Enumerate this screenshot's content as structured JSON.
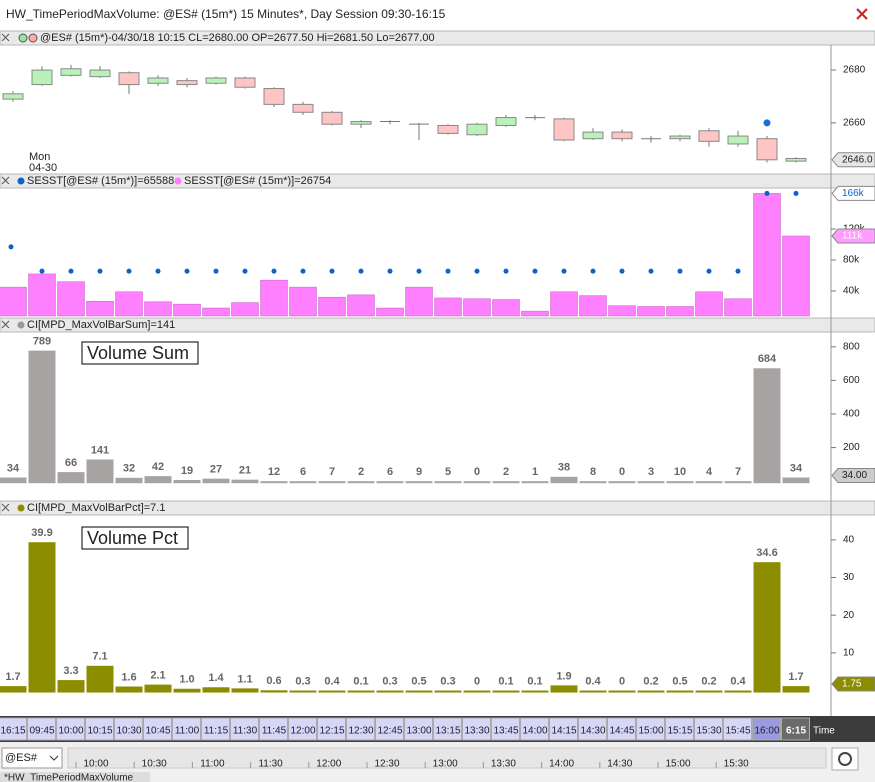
{
  "window": {
    "title": "HW_TimePeriodMaxVolume: @ES# (15m*) 15 Minutes*, Day Session 09:30-16:15",
    "tab": "*HW_TimePeriodMaxVolume",
    "symbol": "@ES#"
  },
  "price_panel": {
    "header": "@ES# (15m*)-04/30/18 10:15 CL=2680.00 OP=2677.50 Hi=2681.50 Lo=2677.00",
    "date_label": [
      "Mon",
      "04-30"
    ],
    "ylim": [
      2641,
      2689.5
    ],
    "yticks": [
      2680,
      2660
    ],
    "last": {
      "value": 2646,
      "label": "2646.0"
    },
    "open": [
      2669,
      2674.5,
      2678,
      2677.5,
      2679,
      2675,
      2676,
      2675,
      2677,
      2673,
      2667,
      2664,
      2659.5,
      2660.5,
      2659.5,
      2659,
      2655.5,
      2659,
      2662,
      2661.5,
      2654,
      2656.5,
      2654,
      2654,
      2657,
      2652,
      2654,
      2645.5
    ],
    "close": [
      2671,
      2680,
      2680.5,
      2680,
      2674.5,
      2677,
      2674.5,
      2677,
      2673.5,
      2667,
      2664,
      2659.5,
      2660.5,
      2660.5,
      2659.5,
      2656,
      2659.5,
      2662,
      2662,
      2653.5,
      2656.5,
      2654,
      2654,
      2655,
      2653,
      2655,
      2646,
      2646.5
    ],
    "high": [
      2672,
      2681.5,
      2682,
      2681.5,
      2679.5,
      2678,
      2677,
      2677.5,
      2677.5,
      2673.5,
      2668,
      2664.5,
      2661,
      2661,
      2660,
      2659.5,
      2660,
      2663,
      2663,
      2662,
      2658,
      2657.5,
      2655,
      2655.5,
      2658,
      2657,
      2655,
      2647
    ],
    "low": [
      2668,
      2674,
      2677.5,
      2677,
      2671,
      2674,
      2673.5,
      2674.5,
      2673,
      2666,
      2663,
      2659,
      2658,
      2659.5,
      2653.5,
      2655.5,
      2655,
      2658.5,
      2661,
      2653,
      2653.5,
      2653,
      2652.5,
      2653,
      2651,
      2651,
      2645,
      2645
    ],
    "up_color": "#b9f2b9",
    "down_color": "#ffc4c4",
    "markers": [
      null,
      null,
      null,
      null,
      null,
      null,
      null,
      null,
      null,
      null,
      null,
      null,
      null,
      null,
      null,
      null,
      null,
      null,
      null,
      null,
      null,
      null,
      null,
      null,
      null,
      null,
      2660,
      null
    ],
    "marker_color": "#1a6fd0"
  },
  "volume_panel": {
    "legend": [
      "SESST[@ES# (15m*)]=65588",
      "SESST[@ES# (15m*)]=26754"
    ],
    "ylim": [
      7700,
      173000
    ],
    "yticks": [
      {
        "value": 40000,
        "label": "40k"
      },
      {
        "value": 80000,
        "label": "80k"
      },
      {
        "value": 120000,
        "label": "120k"
      }
    ],
    "series": [
      {
        "color": "#0a64c8",
        "values": [
          97000,
          65588,
          65588,
          65588,
          65588,
          65588,
          65588,
          65588,
          65588,
          65588,
          65588,
          65588,
          65588,
          65588,
          65588,
          65588,
          65588,
          65588,
          65588,
          65588,
          65588,
          65588,
          65588,
          65588,
          65588,
          65588,
          166000,
          166000
        ],
        "last": {
          "value": 166000,
          "label": "166k"
        }
      },
      {
        "color": "#ff80ff",
        "values": [
          45000,
          62000,
          52000,
          26754,
          39000,
          26000,
          23000,
          18000,
          25000,
          54000,
          45000,
          32000,
          35000,
          18000,
          45000,
          31000,
          30000,
          29000,
          14000,
          39000,
          34000,
          21000,
          20000,
          20000,
          39000,
          30000,
          166000,
          111000
        ],
        "last": {
          "value": 111000,
          "label": "111k"
        }
      }
    ]
  },
  "sum_panel": {
    "legend": "CI[MPD_MaxVolBarSum]=141",
    "annotation": "Volume Sum",
    "color": "#a7a3a3",
    "ylim": [
      -100,
      888
    ],
    "yticks": [
      200,
      400,
      600,
      800
    ],
    "last": {
      "value": 34,
      "label": "34.00"
    },
    "values": [
      34,
      789,
      66,
      141,
      32,
      42,
      19,
      27,
      21,
      12,
      6,
      7,
      2,
      6,
      9,
      5,
      0,
      2,
      1,
      38,
      8,
      0,
      3,
      10,
      4,
      7,
      684,
      34
    ]
  },
  "pct_panel": {
    "legend": "CI[MPD_MaxVolBarPct]=7.1",
    "annotation": "Volume Pct",
    "color": "#8c8c00",
    "ylim": [
      -5.7,
      46.6
    ],
    "yticks": [
      10,
      20,
      30,
      40
    ],
    "last": {
      "value": 1.75,
      "label": "1.75"
    },
    "values": [
      1.7,
      39.9,
      3.3,
      7.1,
      1.6,
      2.1,
      1,
      1.4,
      1.1,
      0.6,
      0.3,
      0.4,
      0.1,
      0.3,
      0.5,
      0.3,
      0,
      0.1,
      0.1,
      1.9,
      0.4,
      0,
      0.2,
      0.5,
      0.2,
      0.4,
      34.6,
      1.7
    ],
    "value_labels": [
      "1.7",
      "39.9",
      "3.3",
      "7.1",
      "1.6",
      "2.1",
      "1.0",
      "1.4",
      "1.1",
      "0.6",
      "0.3",
      "0.4",
      "0.1",
      "0.3",
      "0.5",
      "0.3",
      "0",
      "0.1",
      "0.1",
      "1.9",
      "0.4",
      "0",
      "0.2",
      "0.5",
      "0.2",
      "0.4",
      "34.6",
      "1.7"
    ]
  },
  "time_axis": {
    "labels": [
      "16:15",
      "09:45",
      "10:00",
      "10:15",
      "10:30",
      "10:45",
      "11:00",
      "11:15",
      "11:30",
      "11:45",
      "12:00",
      "12:15",
      "12:30",
      "12:45",
      "13:00",
      "13:15",
      "13:30",
      "13:45",
      "14:00",
      "14:15",
      "14:30",
      "14:45",
      "15:00",
      "15:15",
      "15:30",
      "15:45",
      "16:00",
      "6:15"
    ],
    "title": "Time",
    "scroll_labels": [
      "10:00",
      "10:30",
      "11:00",
      "11:30",
      "12:00",
      "12:30",
      "13:00",
      "13:30",
      "14:00",
      "14:30",
      "15:00",
      "15:30"
    ]
  }
}
